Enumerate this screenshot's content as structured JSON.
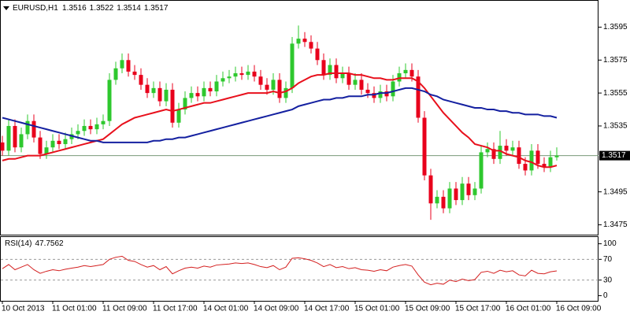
{
  "chart_data": {
    "type": "candlestick",
    "title": "EURUSD,H1",
    "categories": [
      "10 Oct 2013",
      null,
      null,
      null,
      null,
      null,
      null,
      null,
      "11 Oct 01:00",
      null,
      null,
      null,
      null,
      null,
      null,
      null,
      "11 Oct 09:00",
      null,
      null,
      null,
      null,
      null,
      null,
      null,
      "11 Oct 17:00",
      null,
      null,
      null,
      null,
      null,
      null,
      null,
      "14 Oct 01:00",
      null,
      null,
      null,
      null,
      null,
      null,
      null,
      "14 Oct 09:00",
      null,
      null,
      null,
      null,
      null,
      null,
      null,
      "14 Oct 17:00",
      null,
      null,
      null,
      null,
      null,
      null,
      null,
      "15 Oct 01:00",
      null,
      null,
      null,
      null,
      null,
      null,
      null,
      "15 Oct 09:00",
      null,
      null,
      null,
      null,
      null,
      null,
      null,
      "15 Oct 17:00",
      null,
      null,
      null,
      null,
      null,
      null,
      null,
      "16 Oct 01:00",
      null,
      null,
      null,
      null,
      null,
      null,
      null,
      "16 Oct 09:00"
    ],
    "open": [
      1.3525,
      1.352,
      1.3535,
      1.3522,
      1.353,
      1.3538,
      1.3528,
      1.3518,
      1.3522,
      1.3526,
      1.3524,
      1.3527,
      1.353,
      1.3532,
      1.3535,
      1.3533,
      1.3536,
      1.3538,
      1.3563,
      1.357,
      1.3575,
      1.3568,
      1.3566,
      1.356,
      1.3555,
      1.3558,
      1.355,
      1.3557,
      1.3537,
      1.3545,
      1.3552,
      1.3555,
      1.3553,
      1.3558,
      1.3556,
      1.3562,
      1.3564,
      1.3565,
      1.3567,
      1.3566,
      1.3568,
      1.3565,
      1.356,
      1.3557,
      1.3563,
      1.3552,
      1.3558,
      1.3585,
      1.3588,
      1.3586,
      1.3582,
      1.3575,
      1.3566,
      1.3572,
      1.3564,
      1.3567,
      1.356,
      1.3563,
      1.3557,
      1.3555,
      1.3552,
      1.3556,
      1.3553,
      1.3562,
      1.3567,
      1.3569,
      1.3565,
      1.354,
      1.3505,
      1.3488,
      1.3492,
      1.3485,
      1.3497,
      1.349,
      1.35,
      1.3493,
      1.3497,
      1.3519,
      1.3521,
      1.3515,
      1.3523,
      1.352,
      1.3522,
      1.3512,
      1.3508,
      1.352,
      1.3512,
      1.351,
      1.3516
    ],
    "high": [
      1.3529,
      1.3539,
      1.3539,
      1.3534,
      1.3542,
      1.3542,
      1.3532,
      1.3526,
      1.353,
      1.353,
      1.3531,
      1.3534,
      1.3536,
      1.3539,
      1.3539,
      1.354,
      1.3542,
      1.3567,
      1.3574,
      1.3579,
      1.3579,
      1.3572,
      1.357,
      1.3564,
      1.3562,
      1.3562,
      1.3561,
      1.3561,
      1.3549,
      1.3556,
      1.3559,
      1.3559,
      1.3562,
      1.3562,
      1.3566,
      1.3568,
      1.3569,
      1.3571,
      1.3571,
      1.3572,
      1.3572,
      1.3569,
      1.3564,
      1.3567,
      1.3567,
      1.3562,
      1.3589,
      1.3596,
      1.3592,
      1.359,
      1.3586,
      1.3579,
      1.3576,
      1.3576,
      1.3571,
      1.3571,
      1.3567,
      1.3567,
      1.3561,
      1.3559,
      1.356,
      1.356,
      1.3566,
      1.3571,
      1.3573,
      1.3573,
      1.3569,
      1.3544,
      1.3509,
      1.3496,
      1.3496,
      1.3501,
      1.3501,
      1.3504,
      1.3504,
      1.3501,
      1.3523,
      1.3525,
      1.3525,
      1.3532,
      1.3527,
      1.3526,
      1.3526,
      1.3516,
      1.3524,
      1.3524,
      1.3516,
      1.352,
      1.3522
    ],
    "low": [
      1.3517,
      1.3517,
      1.3519,
      1.3519,
      1.3527,
      1.3525,
      1.3515,
      1.3515,
      1.3519,
      1.3521,
      1.3521,
      1.3524,
      1.3527,
      1.3529,
      1.353,
      1.353,
      1.3533,
      1.3535,
      1.356,
      1.3567,
      1.3565,
      1.3563,
      1.3557,
      1.3552,
      1.3552,
      1.3547,
      1.3547,
      1.3534,
      1.3534,
      1.3542,
      1.3549,
      1.355,
      1.355,
      1.3553,
      1.3553,
      1.3559,
      1.3561,
      1.3562,
      1.3563,
      1.3563,
      1.3562,
      1.3557,
      1.3554,
      1.3554,
      1.3549,
      1.3549,
      1.3555,
      1.3582,
      1.3583,
      1.3579,
      1.3572,
      1.3563,
      1.3563,
      1.3561,
      1.3561,
      1.3557,
      1.3557,
      1.3554,
      1.3552,
      1.3549,
      1.3549,
      1.355,
      1.355,
      1.3559,
      1.3564,
      1.3562,
      1.3537,
      1.3502,
      1.3478,
      1.3485,
      1.3482,
      1.3482,
      1.3487,
      1.3487,
      1.349,
      1.349,
      1.3494,
      1.3516,
      1.3512,
      1.3512,
      1.3517,
      1.3517,
      1.3509,
      1.3505,
      1.3505,
      1.3509,
      1.3507,
      1.3507,
      1.3514
    ],
    "close": [
      1.352,
      1.3535,
      1.3522,
      1.353,
      1.3538,
      1.3528,
      1.3518,
      1.3522,
      1.3526,
      1.3524,
      1.3527,
      1.353,
      1.3532,
      1.3535,
      1.3533,
      1.3536,
      1.3538,
      1.3563,
      1.357,
      1.3575,
      1.3568,
      1.3566,
      1.356,
      1.3555,
      1.3558,
      1.355,
      1.3557,
      1.3537,
      1.3545,
      1.3552,
      1.3555,
      1.3553,
      1.3558,
      1.3556,
      1.3562,
      1.3564,
      1.3565,
      1.3567,
      1.3566,
      1.3568,
      1.3565,
      1.356,
      1.3557,
      1.3563,
      1.3552,
      1.3558,
      1.3585,
      1.3588,
      1.3586,
      1.3582,
      1.3575,
      1.3566,
      1.3572,
      1.3564,
      1.3567,
      1.356,
      1.3563,
      1.3557,
      1.3555,
      1.3552,
      1.3556,
      1.3553,
      1.3562,
      1.3567,
      1.3569,
      1.3565,
      1.354,
      1.3505,
      1.3488,
      1.3492,
      1.3485,
      1.3497,
      1.349,
      1.35,
      1.3493,
      1.3497,
      1.3519,
      1.3521,
      1.3515,
      1.3523,
      1.352,
      1.3522,
      1.3512,
      1.3508,
      1.352,
      1.3512,
      1.351,
      1.3516,
      1.3517
    ],
    "up_color": "#2ec82e",
    "down_color": "#e8001c",
    "series": [
      {
        "color": "#e8101c",
        "values": [
          1.3514,
          1.3515,
          1.3515,
          1.3516,
          1.3517,
          1.3517,
          1.3517,
          1.3518,
          1.3519,
          1.352,
          1.3521,
          1.3522,
          1.3523,
          1.3524,
          1.3525,
          1.3526,
          1.3527,
          1.353,
          1.3533,
          1.3536,
          1.3538,
          1.354,
          1.3541,
          1.3542,
          1.3543,
          1.3544,
          1.3545,
          1.3544,
          1.3545,
          1.3546,
          1.3547,
          1.3548,
          1.3549,
          1.3549,
          1.355,
          1.3551,
          1.3552,
          1.3553,
          1.3554,
          1.3555,
          1.3555,
          1.3555,
          1.3555,
          1.3556,
          1.3555,
          1.3556,
          1.3558,
          1.3561,
          1.3563,
          1.3565,
          1.3566,
          1.3566,
          1.3567,
          1.3567,
          1.3567,
          1.3567,
          1.3566,
          1.3566,
          1.3565,
          1.3564,
          1.3564,
          1.3563,
          1.3563,
          1.3564,
          1.3564,
          1.3564,
          1.3562,
          1.3558,
          1.3553,
          1.3548,
          1.3543,
          1.3539,
          1.3535,
          1.3531,
          1.3528,
          1.3524,
          1.3523,
          1.3522,
          1.352,
          1.352,
          1.3518,
          1.3517,
          1.3516,
          1.3514,
          1.3513,
          1.3511,
          1.351,
          1.351,
          1.3511
        ]
      },
      {
        "color": "#1420a0",
        "values": [
          1.354,
          1.3539,
          1.3538,
          1.3537,
          1.3536,
          1.3535,
          1.3534,
          1.3533,
          1.3532,
          1.3531,
          1.353,
          1.3529,
          1.3528,
          1.3527,
          1.3526,
          1.3526,
          1.3525,
          1.3525,
          1.3525,
          1.3525,
          1.3525,
          1.3525,
          1.3525,
          1.3525,
          1.3526,
          1.3526,
          1.3527,
          1.3527,
          1.3528,
          1.3528,
          1.3529,
          1.353,
          1.3531,
          1.3532,
          1.3533,
          1.3534,
          1.3535,
          1.3536,
          1.3537,
          1.3538,
          1.3539,
          1.354,
          1.3541,
          1.3542,
          1.3543,
          1.3544,
          1.3545,
          1.3547,
          1.3548,
          1.3549,
          1.355,
          1.3551,
          1.3551,
          1.3552,
          1.3552,
          1.3553,
          1.3553,
          1.3553,
          1.3554,
          1.3554,
          1.3555,
          1.3555,
          1.3556,
          1.3557,
          1.3558,
          1.3558,
          1.3557,
          1.3556,
          1.3554,
          1.3553,
          1.3551,
          1.355,
          1.3549,
          1.3548,
          1.3547,
          1.3546,
          1.3546,
          1.3545,
          1.3545,
          1.3544,
          1.3544,
          1.3543,
          1.3543,
          1.3542,
          1.3542,
          1.3542,
          1.3541,
          1.3541,
          1.354
        ]
      }
    ],
    "ylim": [
      1.3469,
      1.3611
    ],
    "yticks": [
      1.3595,
      1.3575,
      1.3555,
      1.3535,
      1.3495,
      1.3475
    ],
    "rsi": {
      "title": "RSI(14)",
      "color": "#d42020",
      "values": [
        52,
        60,
        50,
        55,
        60,
        50,
        43,
        47,
        50,
        48,
        51,
        53,
        55,
        58,
        56,
        58,
        60,
        70,
        74,
        76,
        68,
        66,
        60,
        55,
        58,
        50,
        56,
        42,
        48,
        53,
        55,
        53,
        57,
        55,
        59,
        60,
        61,
        63,
        62,
        63,
        60,
        56,
        54,
        58,
        50,
        55,
        72,
        73,
        71,
        68,
        63,
        56,
        60,
        54,
        56,
        52,
        54,
        50,
        49,
        47,
        50,
        48,
        55,
        58,
        60,
        57,
        40,
        26,
        21,
        24,
        22,
        30,
        27,
        32,
        29,
        31,
        45,
        47,
        43,
        49,
        46,
        48,
        40,
        38,
        49,
        43,
        42,
        46,
        47.7562
      ],
      "ylim": [
        -10,
        113
      ],
      "yticks": [
        100,
        70,
        30,
        0
      ],
      "levels": [
        70,
        30
      ]
    }
  }
}
